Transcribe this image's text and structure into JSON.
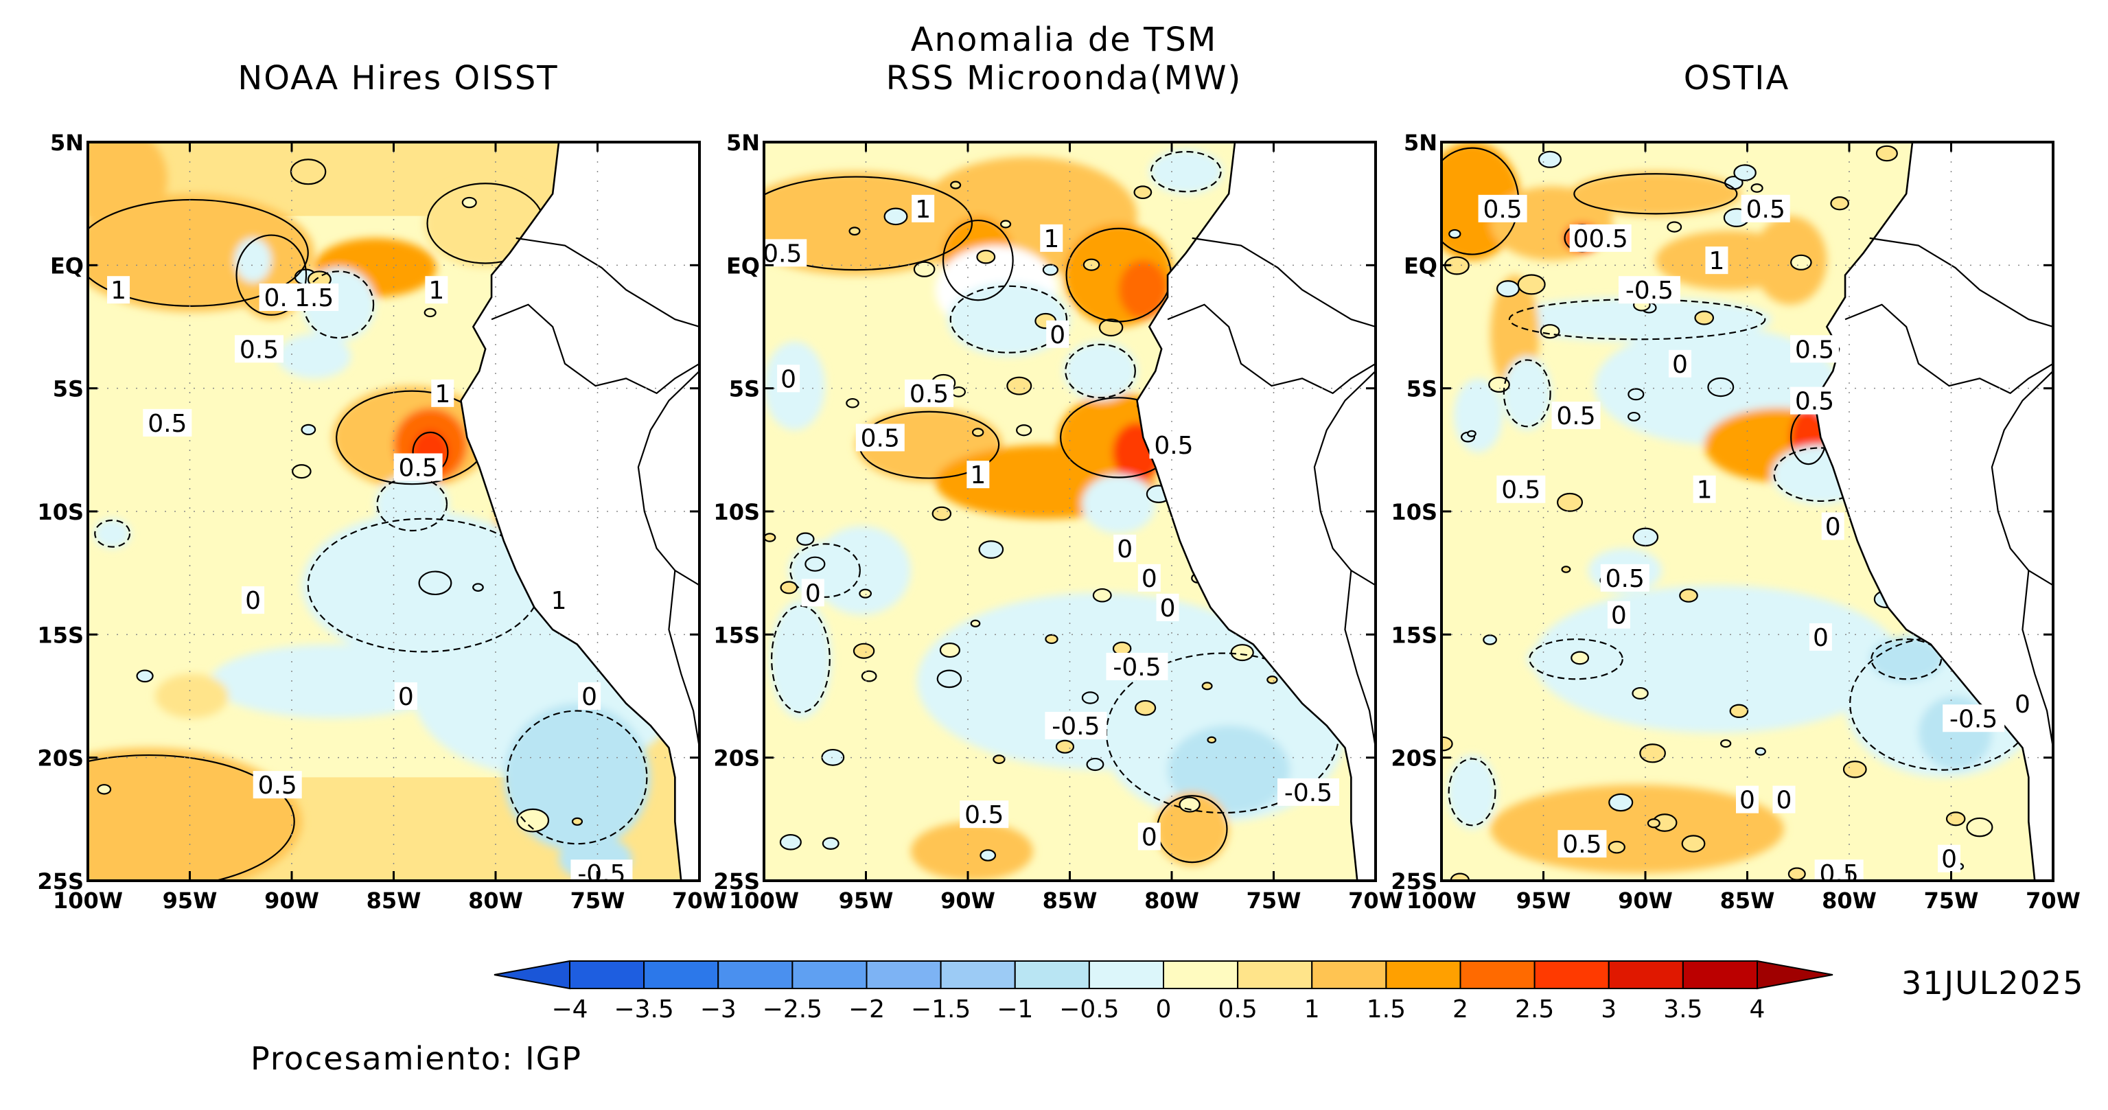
{
  "main_title": {
    "line1": "Anomalia de TSM",
    "line2": "RSS Microonda(MW)"
  },
  "panels": [
    {
      "title": "NOAA Hires OISST"
    },
    {
      "title": "RSS Microonda(MW)"
    },
    {
      "title": "OSTIA"
    }
  ],
  "axes": {
    "lat_ticks": [
      "5N",
      "EQ",
      "5S",
      "10S",
      "15S",
      "20S",
      "25S"
    ],
    "lon_ticks": [
      "100W",
      "95W",
      "90W",
      "85W",
      "80W",
      "75W",
      "70W"
    ]
  },
  "contour_labels": {
    "panel1": [
      "1",
      "0.1",
      "1.5",
      "1",
      "0.5",
      "1",
      "0.5",
      "0.5",
      "1",
      "0",
      "0",
      "0",
      "0.5",
      "-0.5"
    ],
    "panel2": [
      "0.5",
      "1",
      "1",
      "0",
      "0.5",
      "0.5",
      "1",
      "0.5",
      "0",
      "0",
      "0",
      "-0.5",
      "-0.5",
      "-0.5",
      "0.5",
      "0",
      "0",
      "0"
    ],
    "panel3": [
      "0.5",
      "00.5",
      "0.5",
      "1",
      "-0.5",
      "0.5",
      "0",
      "0.5",
      "0.5",
      "0.5",
      "1",
      "0",
      "0.5",
      "0",
      "0",
      "-0.5",
      "0",
      "0",
      "0.5",
      "0.5",
      "0",
      "0"
    ]
  },
  "colorbar": {
    "labels": [
      "-4",
      "-3.5",
      "-3",
      "-2.5",
      "-2",
      "-1.5",
      "-1",
      "-0.5",
      "0",
      "0.5",
      "1",
      "1.5",
      "2",
      "2.5",
      "3",
      "3.5",
      "4"
    ],
    "colors": [
      "#1e5ee0",
      "#2c78ea",
      "#4a90ef",
      "#5fa0f2",
      "#7db3f4",
      "#9ccbf5",
      "#b9e5f3",
      "#dcf6fa",
      "#fffbc0",
      "#ffe48a",
      "#ffc452",
      "#ffa000",
      "#ff6a00",
      "#ff3a00",
      "#e01800",
      "#bb0000"
    ],
    "low_arrow_color": "#1a56d8",
    "high_arrow_color": "#a00000"
  },
  "date": "31JUL2025",
  "credit": "Procesamiento: IGP"
}
